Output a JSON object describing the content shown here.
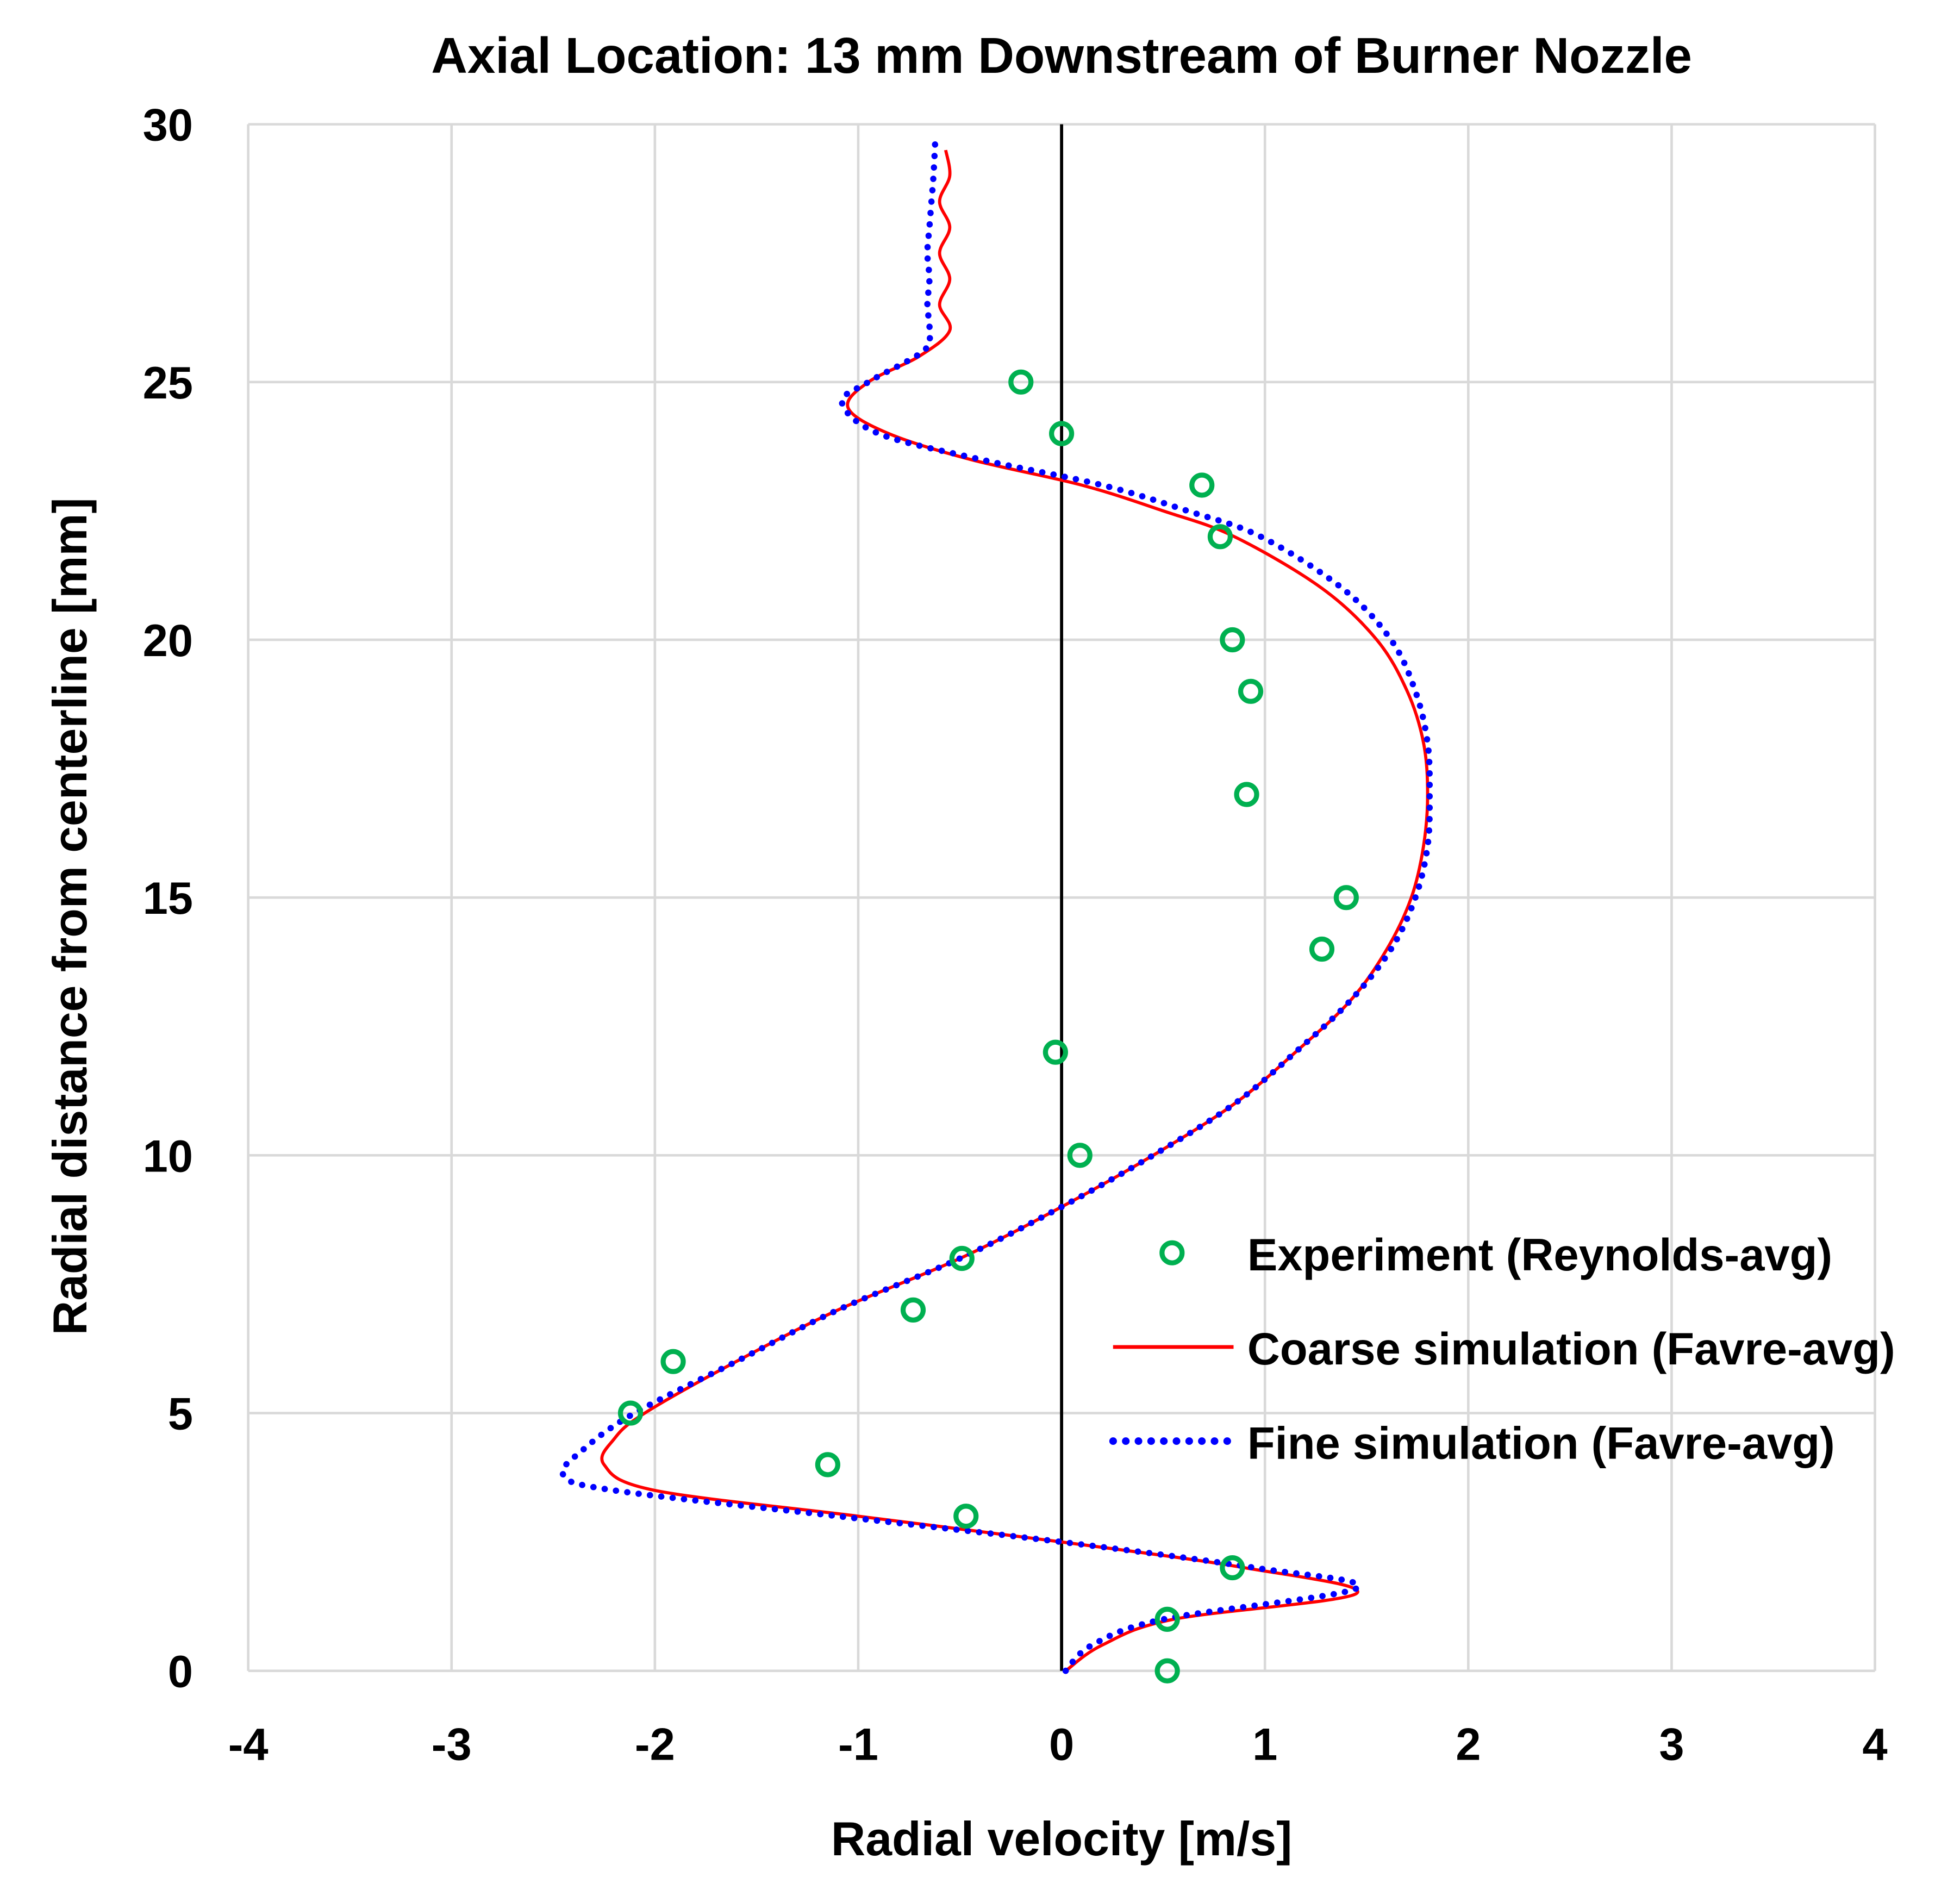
{
  "chart_data": {
    "type": "line",
    "title": "Axial Location: 13 mm Downstream of Burner Nozzle",
    "xlabel": "Radial velocity [m/s]",
    "ylabel": "Radial distance from centerline [mm]",
    "xlim": [
      -4,
      4
    ],
    "ylim": [
      0,
      30
    ],
    "xticks": [
      "-4",
      "-3",
      "-2",
      "-1",
      "0",
      "1",
      "2",
      "3",
      "4"
    ],
    "yticks": [
      "0",
      "5",
      "10",
      "15",
      "20",
      "25",
      "30"
    ],
    "grid": true,
    "legend_position": "bottom-right",
    "colors": {
      "experiment": "#00b050",
      "coarse": "#ff0000",
      "fine": "#0000ff",
      "grid": "#d9d9d9"
    },
    "series": [
      {
        "name": "Experiment (Reynolds-avg)",
        "style": "markers",
        "x": [
          -0.2,
          0.0,
          0.69,
          0.78,
          0.84,
          0.93,
          0.91,
          1.4,
          1.28,
          -0.03,
          0.09,
          -0.49,
          -0.73,
          -1.91,
          -2.12,
          -1.15,
          -0.47,
          0.84,
          0.52,
          0.52
        ],
        "y": [
          25,
          24,
          23,
          22,
          20,
          19,
          17,
          15,
          14,
          12,
          10,
          8,
          7,
          6,
          5,
          4,
          3,
          2,
          1,
          0
        ]
      },
      {
        "name": "Coarse simulation (Favre-avg)",
        "style": "solid",
        "x": [
          0.02,
          0.2,
          0.55,
          1.45,
          0.9,
          0.0,
          -1.0,
          -2.0,
          -2.25,
          -2.2,
          -2.05,
          -1.6,
          -1.1,
          -0.5,
          0.0,
          0.45,
          0.85,
          1.15,
          1.42,
          1.6,
          1.72,
          1.78,
          1.8,
          1.78,
          1.7,
          1.55,
          1.28,
          0.85,
          0.5,
          0.1,
          -0.45,
          -0.85,
          -1.05,
          -0.95,
          -0.7,
          -0.55,
          -0.6,
          -0.55,
          -0.6,
          -0.55,
          -0.6,
          -0.55,
          -0.57
        ],
        "y": [
          0,
          0.5,
          1,
          1.5,
          2,
          2.5,
          3,
          3.5,
          4,
          4.5,
          5,
          6,
          7,
          8,
          9,
          10,
          11,
          12,
          13,
          14,
          15,
          16,
          17,
          18,
          19,
          20,
          21,
          22,
          22.5,
          23,
          23.5,
          24,
          24.5,
          25,
          25.5,
          26,
          26.5,
          27,
          27.5,
          28,
          28.5,
          29,
          29.5
        ]
      },
      {
        "name": "Fine simulation (Favre-avg)",
        "style": "dotted",
        "x": [
          0.02,
          0.15,
          0.5,
          1.45,
          0.95,
          0.0,
          -1.1,
          -2.2,
          -2.45,
          -2.35,
          -2.1,
          -1.6,
          -1.1,
          -0.5,
          0.0,
          0.45,
          0.85,
          1.15,
          1.42,
          1.62,
          1.74,
          1.8,
          1.81,
          1.8,
          1.74,
          1.62,
          1.38,
          0.98,
          0.62,
          0.2,
          -0.4,
          -0.9,
          -1.08,
          -0.95,
          -0.68,
          -0.65,
          -0.66,
          -0.65,
          -0.66,
          -0.65,
          -0.64,
          -0.63,
          -0.62
        ],
        "y": [
          0,
          0.5,
          1,
          1.6,
          2,
          2.5,
          3,
          3.5,
          3.8,
          4.3,
          5,
          6,
          7,
          8,
          9,
          10,
          11,
          12,
          13,
          14,
          15,
          16,
          17,
          18,
          19,
          20,
          21,
          22,
          22.5,
          23,
          23.5,
          24,
          24.6,
          25,
          25.6,
          26,
          26.5,
          27,
          27.5,
          28,
          28.5,
          29,
          29.8
        ]
      }
    ]
  }
}
